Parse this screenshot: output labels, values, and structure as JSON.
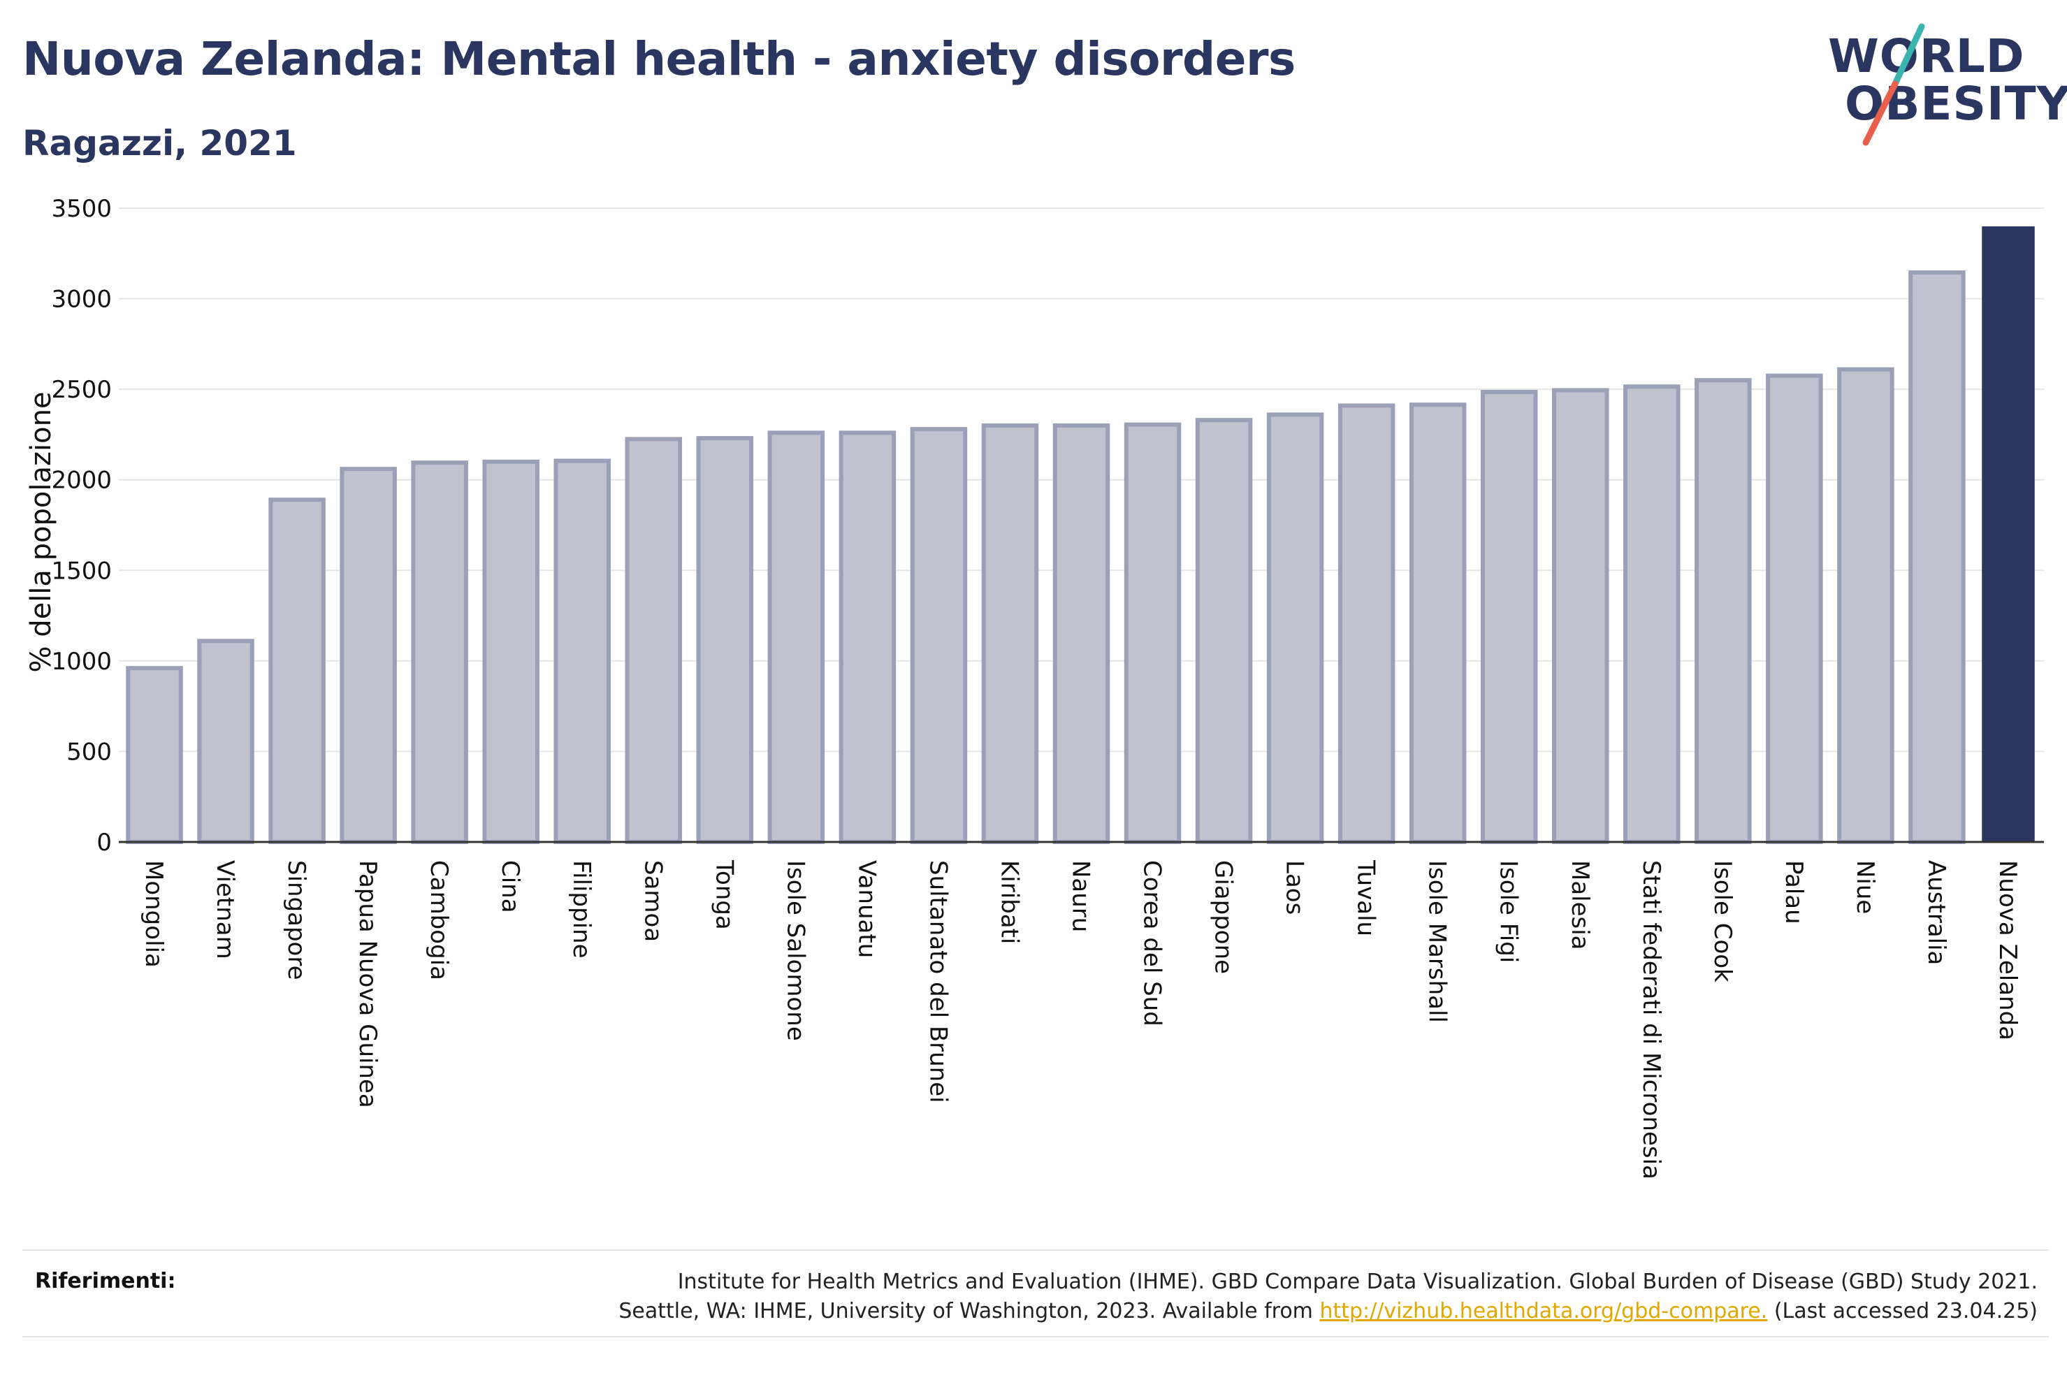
{
  "header": {
    "title": "Nuova Zelanda: Mental health - anxiety disorders",
    "subtitle": "Ragazzi, 2021"
  },
  "logo": {
    "line1": "WORLD",
    "line2": "OBESITY",
    "colors": {
      "text": "#2b3660",
      "slash_teal": "#3ab5b0",
      "slash_red": "#e8604c"
    }
  },
  "chart_data": {
    "type": "bar",
    "categories": [
      "Mongolia",
      "Vietnam",
      "Singapore",
      "Papua Nuova Guinea",
      "Cambogia",
      "Cina",
      "Filippine",
      "Samoa",
      "Tonga",
      "Isole Salomone",
      "Vanuatu",
      "Sultanato del Brunei",
      "Kiribati",
      "Nauru",
      "Corea del Sud",
      "Giappone",
      "Laos",
      "Tuvalu",
      "Isole Marshall",
      "Isole Figi",
      "Malesia",
      "Stati federati di Micronesia",
      "Isole Cook",
      "Palau",
      "Niue",
      "Australia",
      "Nuova Zelanda"
    ],
    "values": [
      960,
      1110,
      1890,
      2060,
      2095,
      2100,
      2105,
      2225,
      2230,
      2260,
      2260,
      2280,
      2300,
      2300,
      2305,
      2330,
      2360,
      2410,
      2415,
      2485,
      2495,
      2515,
      2550,
      2575,
      2610,
      3145,
      3400
    ],
    "highlight": "Nuova Zelanda",
    "ylabel": "% della popolazione",
    "ylim": [
      0,
      3500
    ],
    "yticks": [
      0,
      500,
      1000,
      1500,
      2000,
      2500,
      3000,
      3500
    ],
    "grid": true,
    "colors": {
      "bar": "#bfc3d0",
      "bar_edge": "#9aa0b8",
      "highlight": "#2b3660",
      "grid": "#e6e6e6"
    }
  },
  "references": {
    "label": "Riferimenti:",
    "line1": "Institute for Health Metrics and Evaluation (IHME). GBD Compare Data Visualization. Global Burden of Disease (GBD) Study 2021.",
    "line2_prefix": "Seattle, WA: IHME, University of Washington, 2023. Available from ",
    "link": "http://vizhub.healthdata.org/gbd-compare.",
    "line2_suffix": " (Last accessed 23.04.25)"
  }
}
